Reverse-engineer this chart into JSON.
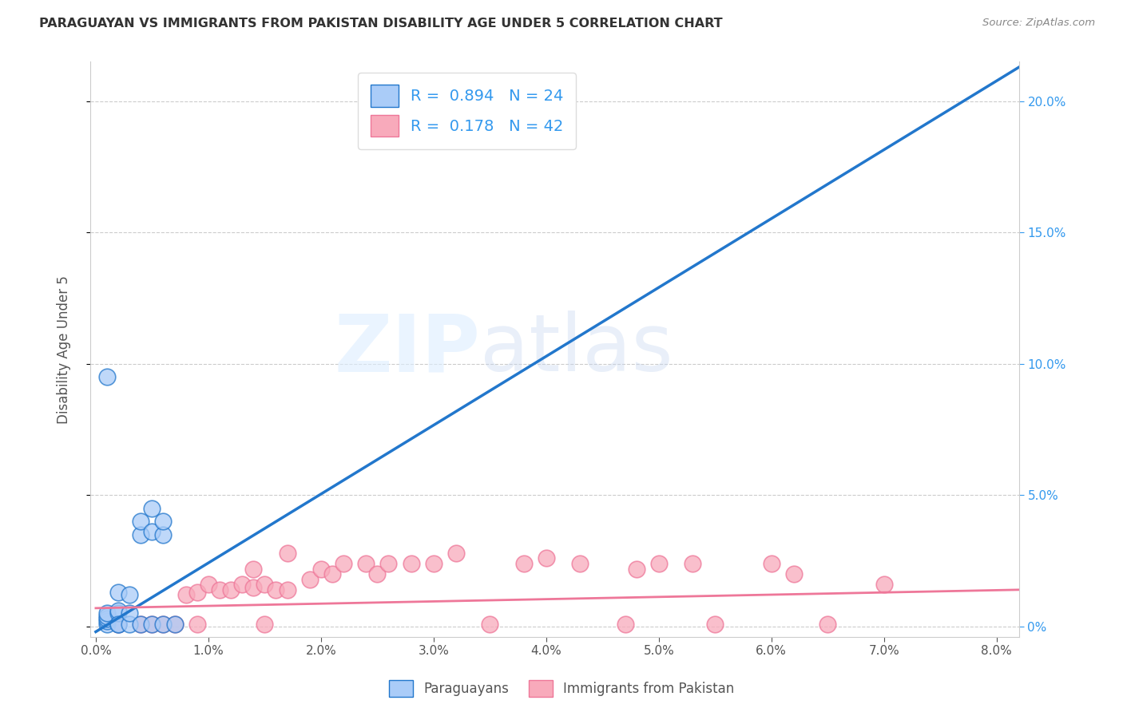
{
  "title": "PARAGUAYAN VS IMMIGRANTS FROM PAKISTAN DISABILITY AGE UNDER 5 CORRELATION CHART",
  "source": "Source: ZipAtlas.com",
  "ylabel": "Disability Age Under 5",
  "xlim": [
    -0.0005,
    0.082
  ],
  "ylim": [
    -0.004,
    0.215
  ],
  "watermark_zip": "ZIP",
  "watermark_atlas": "atlas",
  "paraguayans_color": "#aaccf8",
  "pakistan_color": "#f8aabb",
  "line_blue_color": "#2277cc",
  "line_pink_color": "#ee7799",
  "R_blue": 0.894,
  "N_blue": 24,
  "R_pink": 0.178,
  "N_pink": 42,
  "paraguayans_x": [
    0.001,
    0.001,
    0.001,
    0.001,
    0.001,
    0.001,
    0.002,
    0.002,
    0.002,
    0.002,
    0.002,
    0.003,
    0.003,
    0.003,
    0.004,
    0.004,
    0.004,
    0.005,
    0.005,
    0.005,
    0.006,
    0.006,
    0.006,
    0.007
  ],
  "paraguayans_y": [
    0.001,
    0.002,
    0.003,
    0.004,
    0.005,
    0.095,
    0.001,
    0.005,
    0.006,
    0.013,
    0.001,
    0.001,
    0.005,
    0.012,
    0.001,
    0.035,
    0.04,
    0.001,
    0.036,
    0.045,
    0.001,
    0.035,
    0.04,
    0.001
  ],
  "pakistan_x": [
    0.002,
    0.004,
    0.005,
    0.006,
    0.007,
    0.008,
    0.009,
    0.009,
    0.01,
    0.011,
    0.012,
    0.013,
    0.014,
    0.014,
    0.015,
    0.015,
    0.016,
    0.017,
    0.017,
    0.019,
    0.02,
    0.021,
    0.022,
    0.024,
    0.025,
    0.026,
    0.028,
    0.03,
    0.032,
    0.035,
    0.038,
    0.04,
    0.043,
    0.047,
    0.048,
    0.05,
    0.053,
    0.055,
    0.06,
    0.062,
    0.065,
    0.07
  ],
  "pakistan_y": [
    0.001,
    0.001,
    0.001,
    0.001,
    0.001,
    0.012,
    0.001,
    0.013,
    0.016,
    0.014,
    0.014,
    0.016,
    0.015,
    0.022,
    0.001,
    0.016,
    0.014,
    0.014,
    0.028,
    0.018,
    0.022,
    0.02,
    0.024,
    0.024,
    0.02,
    0.024,
    0.024,
    0.024,
    0.028,
    0.001,
    0.024,
    0.026,
    0.024,
    0.001,
    0.022,
    0.024,
    0.024,
    0.001,
    0.024,
    0.02,
    0.001,
    0.016
  ],
  "blue_line_x0": 0.0,
  "blue_line_y0": -0.002,
  "blue_line_x1": 0.082,
  "blue_line_y1": 0.213,
  "pink_line_x0": 0.0,
  "pink_line_y0": 0.007,
  "pink_line_x1": 0.082,
  "pink_line_y1": 0.014,
  "xlabel_ticks": [
    0.0,
    0.01,
    0.02,
    0.03,
    0.04,
    0.05,
    0.06,
    0.07,
    0.08
  ],
  "xlabel_labels": [
    "0.0%",
    "1.0%",
    "2.0%",
    "3.0%",
    "4.0%",
    "5.0%",
    "6.0%",
    "7.0%",
    "8.0%"
  ],
  "ylabel_right_ticks": [
    0.0,
    0.05,
    0.1,
    0.15,
    0.2
  ],
  "ylabel_right_labels": [
    "0%",
    "5.0%",
    "10.0%",
    "15.0%",
    "20.0%"
  ],
  "background_color": "#ffffff",
  "grid_color": "#cccccc"
}
